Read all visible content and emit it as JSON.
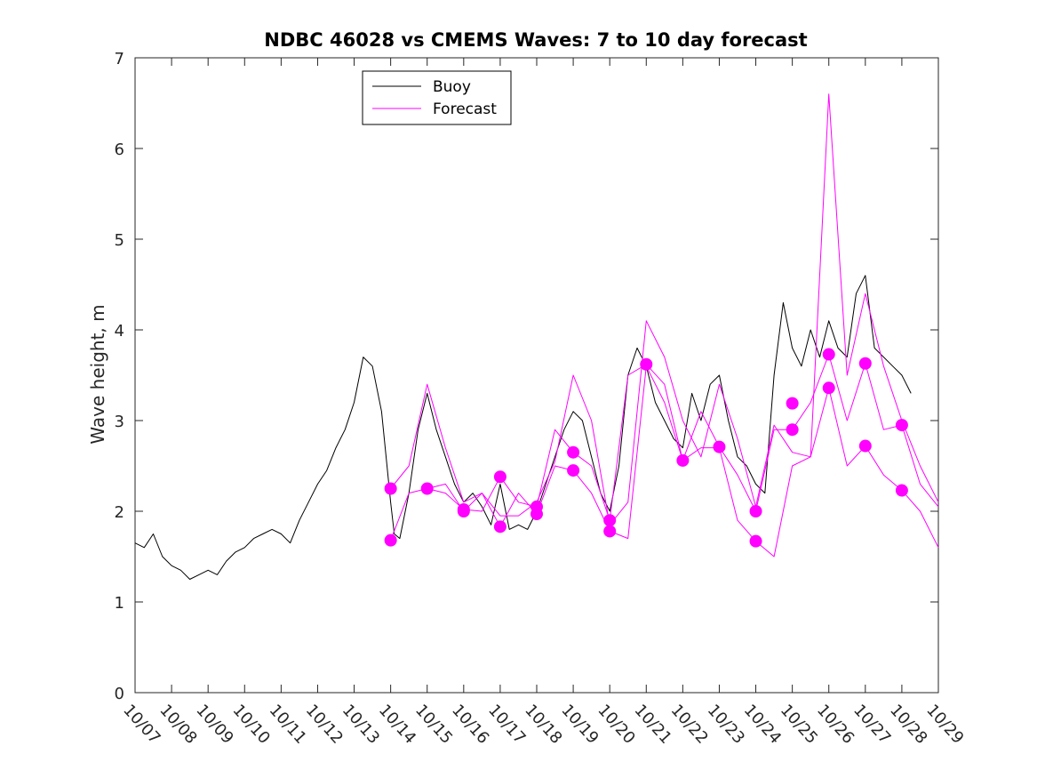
{
  "chart_data": {
    "type": "line",
    "title": "NDBC 46028 vs CMEMS Waves: 7 to 10 day forecast",
    "xlabel": "",
    "ylabel": "Wave height, m",
    "ylim": [
      0,
      7
    ],
    "yticks": [
      0,
      1,
      2,
      3,
      4,
      5,
      6,
      7
    ],
    "xlim": [
      0,
      22
    ],
    "xtick_labels": [
      "10/07",
      "10/08",
      "10/09",
      "10/10",
      "10/11",
      "10/12",
      "10/13",
      "10/14",
      "10/15",
      "10/16",
      "10/17",
      "10/18",
      "10/19",
      "10/20",
      "10/21",
      "10/22",
      "10/23",
      "10/24",
      "10/25",
      "10/26",
      "10/27",
      "10/28",
      "10/29"
    ],
    "legend": {
      "position": "top-left",
      "entries": [
        {
          "label": "Buoy",
          "color": "#000000"
        },
        {
          "label": "Forecast",
          "color": "#ff00ff"
        }
      ]
    },
    "series": [
      {
        "name": "Buoy",
        "color": "#000000",
        "x": [
          0,
          0.25,
          0.5,
          0.75,
          1,
          1.25,
          1.5,
          1.75,
          2,
          2.25,
          2.5,
          2.75,
          3,
          3.25,
          3.5,
          3.75,
          4,
          4.25,
          4.5,
          4.75,
          5,
          5.25,
          5.5,
          5.75,
          6,
          6.25,
          6.5,
          6.75,
          7,
          7.1,
          7.25,
          7.5,
          7.75,
          8,
          8.25,
          8.5,
          8.75,
          9,
          9.25,
          9.5,
          9.75,
          10,
          10.25,
          10.5,
          10.75,
          11,
          11.25,
          11.5,
          11.75,
          12,
          12.25,
          12.5,
          12.75,
          13,
          13.25,
          13.5,
          13.75,
          14,
          14.25,
          14.5,
          14.75,
          15,
          15.25,
          15.5,
          15.75,
          16,
          16.25,
          16.5,
          16.75,
          17,
          17.25,
          17.5,
          17.75,
          18,
          18.25,
          18.5,
          18.75,
          19,
          19.25,
          19.5,
          19.75,
          20,
          20.25,
          20.5,
          20.75,
          21,
          21.25,
          21.5,
          21.75,
          22
        ],
        "y": [
          1.65,
          1.6,
          1.75,
          1.5,
          1.4,
          1.35,
          1.25,
          1.3,
          1.35,
          1.3,
          1.45,
          1.55,
          1.6,
          1.7,
          1.75,
          1.8,
          1.75,
          1.65,
          1.9,
          2.1,
          2.3,
          2.45,
          2.7,
          2.9,
          3.2,
          3.7,
          3.6,
          3.1,
          2.1,
          1.75,
          1.7,
          2.2,
          2.9,
          3.3,
          2.9,
          2.6,
          2.3,
          2.1,
          2.2,
          2.05,
          1.85,
          2.3,
          1.8,
          1.85,
          1.8,
          2.0,
          2.3,
          2.6,
          2.9,
          3.1,
          3.0,
          2.6,
          2.2,
          2.0,
          2.5,
          3.5,
          3.8,
          3.6,
          3.2,
          3.0,
          2.8,
          2.7,
          3.3,
          3.0,
          3.4,
          3.5,
          3.0,
          2.6,
          2.5,
          2.3,
          2.2,
          3.5,
          4.3,
          3.8,
          3.6,
          4.0,
          3.7,
          4.1,
          3.8,
          3.7,
          4.4,
          4.6,
          3.8,
          3.7,
          3.6,
          3.5,
          3.3,
          null,
          null,
          null
        ]
      },
      {
        "name": "Forecast",
        "color": "#ff00ff",
        "x": [
          7,
          7.5,
          8,
          8.5,
          9,
          9.5,
          10,
          10.5,
          11,
          11.5,
          12,
          12.5,
          13,
          13.5,
          14,
          14.5,
          15,
          15.5,
          16,
          16.5,
          17,
          17.5,
          18,
          18.5,
          19,
          19.5,
          20,
          20.5,
          21,
          21.5,
          22
        ],
        "y": [
          2.25,
          2.5,
          3.4,
          2.7,
          2.1,
          2.2,
          1.95,
          1.95,
          2.1,
          2.55,
          3.5,
          3.0,
          1.85,
          2.1,
          4.1,
          3.7,
          3.0,
          2.6,
          3.4,
          2.8,
          2.05,
          2.95,
          2.65,
          2.6,
          6.6,
          3.5,
          4.4,
          3.6,
          3.0,
          2.5,
          2.1
        ]
      },
      {
        "name": "Forecast",
        "color": "#ff00ff",
        "x": [
          7,
          7.5,
          8,
          8.5,
          9,
          9.5,
          10,
          10.5,
          11,
          11.5,
          12,
          12.5,
          13,
          13.5,
          14,
          14.5,
          15,
          15.5,
          16,
          16.5,
          17,
          17.5,
          18,
          18.5,
          19,
          19.5,
          20,
          20.5,
          21,
          21.5,
          22
        ],
        "y": [
          1.68,
          2.2,
          2.25,
          2.3,
          2.0,
          2.2,
          1.83,
          2.2,
          1.97,
          2.5,
          2.45,
          2.2,
          1.78,
          1.7,
          3.6,
          3.2,
          2.56,
          2.7,
          2.7,
          1.9,
          1.67,
          1.5,
          2.5,
          2.6,
          3.36,
          2.5,
          2.72,
          2.4,
          2.23,
          2.0,
          1.6
        ]
      },
      {
        "name": "Forecast",
        "color": "#ff00ff",
        "x": [
          8,
          8.5,
          9,
          9.5,
          10,
          10.5,
          11,
          11.5,
          12,
          12.5,
          13,
          13.5,
          14,
          14.5,
          15,
          15.5,
          16,
          16.5,
          17,
          17.5,
          18,
          18.5,
          19,
          19.5,
          20,
          20.5,
          21,
          21.5,
          22
        ],
        "y": [
          2.25,
          2.2,
          2.02,
          2.0,
          2.38,
          2.1,
          2.05,
          2.9,
          2.65,
          2.5,
          1.9,
          3.5,
          3.62,
          3.4,
          2.56,
          3.1,
          2.71,
          2.4,
          2.0,
          2.9,
          2.9,
          3.2,
          3.73,
          3.0,
          3.63,
          2.9,
          2.95,
          2.3,
          2.05
        ]
      }
    ],
    "markers": [
      {
        "x": 7,
        "y": 2.25
      },
      {
        "x": 7,
        "y": 1.68
      },
      {
        "x": 8,
        "y": 2.25
      },
      {
        "x": 9,
        "y": 2.02
      },
      {
        "x": 9,
        "y": 2.0
      },
      {
        "x": 10,
        "y": 2.38
      },
      {
        "x": 10,
        "y": 1.83
      },
      {
        "x": 11,
        "y": 2.05
      },
      {
        "x": 11,
        "y": 1.97
      },
      {
        "x": 12,
        "y": 2.65
      },
      {
        "x": 12,
        "y": 2.45
      },
      {
        "x": 13,
        "y": 1.9
      },
      {
        "x": 13,
        "y": 1.78
      },
      {
        "x": 14,
        "y": 3.62
      },
      {
        "x": 15,
        "y": 2.56
      },
      {
        "x": 16,
        "y": 2.71
      },
      {
        "x": 17,
        "y": 2.0
      },
      {
        "x": 17,
        "y": 1.67
      },
      {
        "x": 18,
        "y": 3.19
      },
      {
        "x": 18,
        "y": 2.9
      },
      {
        "x": 19,
        "y": 3.73
      },
      {
        "x": 19,
        "y": 3.36
      },
      {
        "x": 20,
        "y": 3.63
      },
      {
        "x": 20,
        "y": 2.72
      },
      {
        "x": 21,
        "y": 2.95
      },
      {
        "x": 21,
        "y": 2.23
      }
    ],
    "marker_color": "#ff00ff",
    "grid": false
  }
}
